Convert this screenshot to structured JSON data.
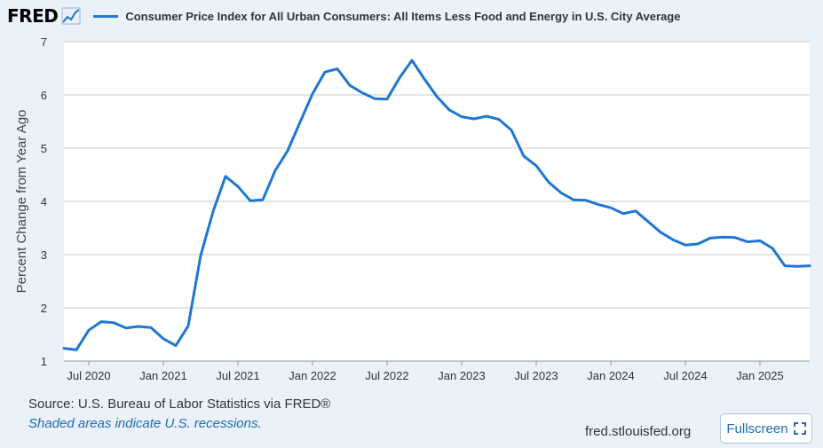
{
  "header": {
    "logo": "FRED",
    "logo_icon": "trend-chart-icon",
    "series_title": "Consumer Price Index for All Urban Consumers: All Items Less Food and Energy in U.S. City Average"
  },
  "colors": {
    "series": "#1f77d4",
    "background": "#eaf1f9",
    "plot": "#ffffff",
    "grid": "#c8c8c8"
  },
  "chart_data": {
    "type": "line",
    "ylabel": "Percent Change from Year Ago",
    "ylim": [
      1,
      7
    ],
    "yticks": [
      "1",
      "2",
      "3",
      "4",
      "5",
      "6",
      "7"
    ],
    "x_range": [
      "2020-05",
      "2025-05"
    ],
    "xticks": [
      {
        "label": "Jul 2020",
        "date": "2020-07"
      },
      {
        "label": "Jan 2021",
        "date": "2021-01"
      },
      {
        "label": "Jul 2021",
        "date": "2021-07"
      },
      {
        "label": "Jan 2022",
        "date": "2022-01"
      },
      {
        "label": "Jul 2022",
        "date": "2022-07"
      },
      {
        "label": "Jan 2023",
        "date": "2023-01"
      },
      {
        "label": "Jul 2023",
        "date": "2023-07"
      },
      {
        "label": "Jan 2024",
        "date": "2024-01"
      },
      {
        "label": "Jul 2024",
        "date": "2024-07"
      },
      {
        "label": "Jan 2025",
        "date": "2025-01"
      }
    ],
    "series": [
      {
        "name": "Consumer Price Index for All Urban Consumers: All Items Less Food and Energy in U.S. City Average",
        "start": "2020-05",
        "values": [
          1.24,
          1.21,
          1.58,
          1.74,
          1.72,
          1.62,
          1.65,
          1.63,
          1.42,
          1.29,
          1.66,
          2.98,
          3.81,
          4.47,
          4.28,
          4.01,
          4.03,
          4.58,
          4.95,
          5.49,
          6.02,
          6.43,
          6.49,
          6.18,
          6.04,
          5.93,
          5.92,
          6.32,
          6.65,
          6.3,
          5.97,
          5.72,
          5.59,
          5.55,
          5.6,
          5.54,
          5.34,
          4.85,
          4.67,
          4.36,
          4.16,
          4.03,
          4.02,
          3.94,
          3.88,
          3.77,
          3.82,
          3.62,
          3.42,
          3.28,
          3.18,
          3.2,
          3.31,
          3.33,
          3.32,
          3.24,
          3.26,
          3.12,
          2.79,
          2.78,
          2.79
        ]
      }
    ]
  },
  "footer": {
    "source": "Source: U.S. Bureau of Labor Statistics via FRED®",
    "recessions": "Shaded areas indicate U.S. recessions.",
    "site": "fred.stlouisfed.org",
    "fullscreen_label": "Fullscreen",
    "fullscreen_icon": "expand-icon"
  }
}
